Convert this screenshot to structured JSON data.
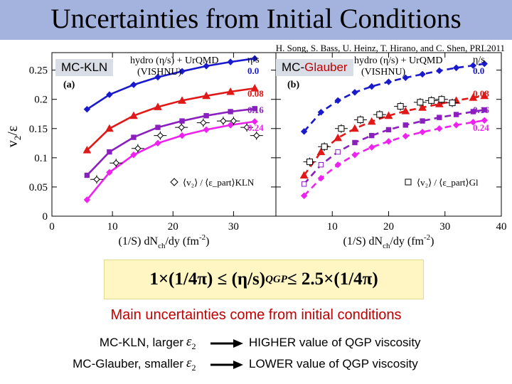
{
  "header": {
    "title": "Uncertainties from Initial Conditions",
    "citation": "H. Song, S. Bass, U. Heinz, T. Hirano, and C. Shen, PRL2011",
    "bar_color": "#a3b3de"
  },
  "tags": {
    "kln": "MC-KLN",
    "glauber_prefix": "MC-",
    "glauber_highlight": "Glauber",
    "highlight_color": "#c00000"
  },
  "formula": {
    "text": "1×(1/4π) ≤ (η/s)",
    "subscript": "QGP",
    "text_end": " ≤ 2.5×(1/4π)"
  },
  "conclusion": {
    "main": "Main uncertainties come from initial conditions",
    "rows": [
      {
        "label": "MC-KLN, larger",
        "symbol": "ε",
        "symbol_sub": "2",
        "result": "HIGHER value of QGP viscosity"
      },
      {
        "label": "MC-Glauber, smaller",
        "symbol": "ε",
        "symbol_sub": "2",
        "result": "LOWER value of QGP viscosity"
      }
    ]
  },
  "chart_data": {
    "type": "scatter",
    "y_label_main": "v",
    "y_label_sub": "2",
    "y_label_tail": "/ε",
    "x_label": "(1/S) dN",
    "x_label_sub": "ch",
    "x_label_mid": "/dy (fm",
    "x_label_sup": "-2",
    "x_label_end": ")",
    "ylim": [
      0,
      0.28
    ],
    "y_ticks": [
      "0",
      "0.05",
      "0.1",
      "0.15",
      "0.2",
      "0.25"
    ],
    "y_tick_values": [
      0,
      0.05,
      0.1,
      0.15,
      0.2,
      0.25
    ],
    "legend_header": "hydro (η/s) + UrQMD",
    "legend_header_sub": "(VISHNU)",
    "eta_label": "η/s",
    "series_names": [
      "0.0",
      "0.08",
      "0.16",
      "0.24"
    ],
    "series_colors": [
      "#1a1acc",
      "#e01818",
      "#8a1fbf",
      "#ee22ee"
    ],
    "panels": [
      {
        "id": "a",
        "label": "(a)",
        "initial_condition": "MC-KLN",
        "xlim": [
          0,
          37
        ],
        "x_ticks": [
          "0",
          "10",
          "20",
          "30"
        ],
        "x_tick_values": [
          0,
          10,
          20,
          30
        ],
        "line_style": "solid",
        "data_legend": "⟨v₂⟩ / ⟨ε_part⟩KLN",
        "data_marker": "diamond",
        "series": [
          {
            "name": "0.0",
            "x": [
              5.8,
              9.5,
              13.5,
              17.5,
              21.5,
              25.5,
              29.5,
              33.5
            ],
            "y": [
              0.183,
              0.208,
              0.225,
              0.238,
              0.248,
              0.257,
              0.264,
              0.27
            ]
          },
          {
            "name": "0.08",
            "x": [
              5.8,
              9.5,
              13.5,
              17.5,
              21.5,
              25.5,
              29.5,
              33.5
            ],
            "y": [
              0.113,
              0.15,
              0.172,
              0.187,
              0.198,
              0.206,
              0.213,
              0.219
            ]
          },
          {
            "name": "0.16",
            "x": [
              5.8,
              9.5,
              13.5,
              17.5,
              21.5,
              25.5,
              29.5,
              33.5
            ],
            "y": [
              0.07,
              0.11,
              0.135,
              0.152,
              0.163,
              0.172,
              0.179,
              0.184
            ]
          },
          {
            "name": "0.24",
            "x": [
              5.8,
              9.5,
              13.5,
              17.5,
              21.5,
              25.5,
              29.5,
              33.5
            ],
            "y": [
              0.028,
              0.075,
              0.105,
              0.125,
              0.138,
              0.148,
              0.156,
              0.162
            ]
          }
        ],
        "data": {
          "x": [
            7.4,
            10.6,
            14.2,
            17.9,
            21.4,
            25.0,
            28.3,
            30.0,
            32.2,
            33.8
          ],
          "y": [
            0.063,
            0.091,
            0.116,
            0.138,
            0.152,
            0.16,
            0.163,
            0.163,
            0.152,
            0.138
          ]
        }
      },
      {
        "id": "b",
        "label": "(b)",
        "initial_condition": "MC-Glauber",
        "xlim": [
          0,
          40
        ],
        "x_ticks": [
          "0",
          "10",
          "20",
          "30",
          "40"
        ],
        "x_tick_values": [
          0,
          10,
          20,
          30,
          40
        ],
        "line_style": "dashed",
        "data_legend": "⟨v₂⟩ / ⟨ε_part⟩Gl",
        "data_marker": "square",
        "series": [
          {
            "name": "0.0",
            "x": [
              5.0,
              8.0,
              11.0,
              14.0,
              17.0,
              20.0,
              23.0,
              26.0,
              29.0,
              32.0,
              35.0,
              37.0
            ],
            "y": [
              0.145,
              0.178,
              0.198,
              0.212,
              0.222,
              0.23,
              0.237,
              0.243,
              0.249,
              0.254,
              0.258,
              0.261
            ]
          },
          {
            "name": "0.08",
            "x": [
              5.0,
              8.0,
              11.0,
              14.0,
              17.0,
              20.0,
              23.0,
              26.0,
              29.0,
              32.0,
              35.0,
              37.0
            ],
            "y": [
              0.07,
              0.11,
              0.134,
              0.15,
              0.162,
              0.172,
              0.18,
              0.186,
              0.192,
              0.198,
              0.203,
              0.206
            ]
          },
          {
            "name": "0.16",
            "x": [
              5.0,
              8.0,
              11.0,
              14.0,
              17.0,
              20.0,
              23.0,
              26.0,
              29.0,
              32.0,
              35.0,
              37.0
            ],
            "y": [
              0.055,
              0.088,
              0.11,
              0.126,
              0.138,
              0.148,
              0.156,
              0.163,
              0.169,
              0.174,
              0.179,
              0.182
            ]
          },
          {
            "name": "0.24",
            "x": [
              5.0,
              8.0,
              11.0,
              14.0,
              17.0,
              20.0,
              23.0,
              26.0,
              29.0,
              32.0,
              35.0,
              37.0
            ],
            "y": [
              0.035,
              0.065,
              0.088,
              0.105,
              0.118,
              0.128,
              0.137,
              0.144,
              0.15,
              0.156,
              0.161,
              0.164
            ]
          }
        ],
        "data": {
          "x": [
            6.0,
            8.6,
            11.6,
            15.0,
            18.4,
            22.1,
            25.6,
            27.6,
            29.4,
            31.3
          ],
          "y": [
            0.093,
            0.119,
            0.15,
            0.165,
            0.174,
            0.188,
            0.195,
            0.198,
            0.2,
            0.194
          ]
        }
      }
    ]
  }
}
